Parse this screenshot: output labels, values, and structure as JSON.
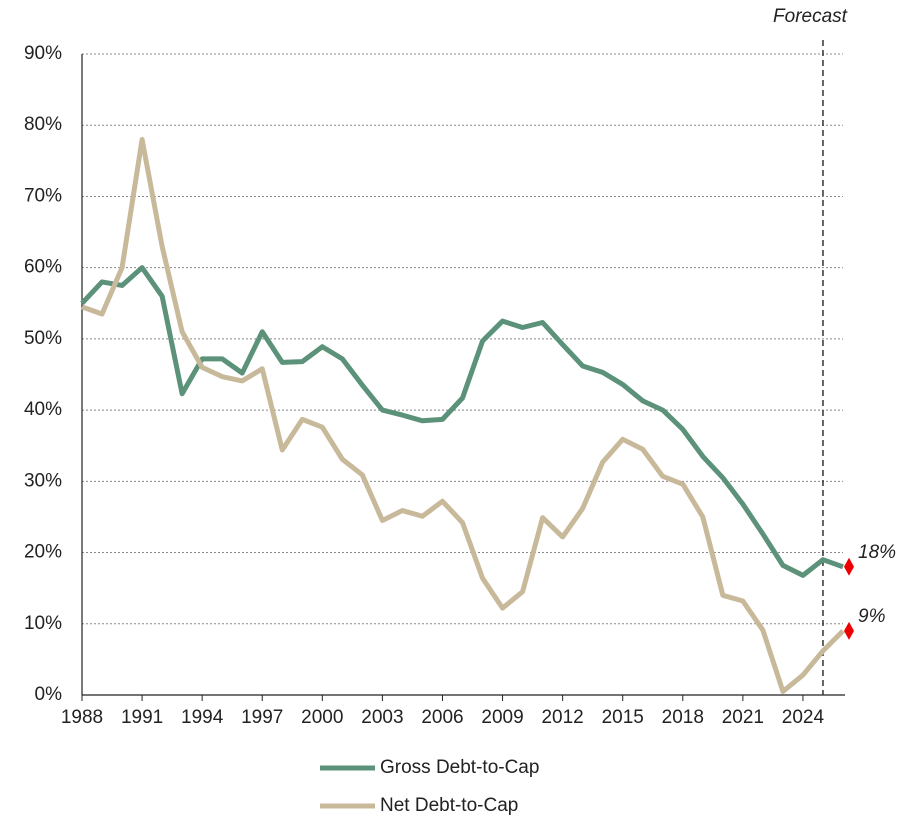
{
  "chart_data": {
    "type": "line",
    "x": [
      1988,
      1989,
      1990,
      1991,
      1992,
      1993,
      1994,
      1995,
      1996,
      1997,
      1998,
      1999,
      2000,
      2001,
      2002,
      2003,
      2004,
      2005,
      2006,
      2007,
      2008,
      2009,
      2010,
      2011,
      2012,
      2013,
      2014,
      2015,
      2016,
      2017,
      2018,
      2019,
      2020,
      2021,
      2022,
      2023,
      2024,
      2025,
      2026
    ],
    "series": [
      {
        "name": "Gross Debt-to-Cap",
        "color": "#5b9279",
        "values": [
          55,
          58,
          57.5,
          60,
          56,
          42.3,
          47.2,
          47.2,
          45.2,
          51,
          46.7,
          46.8,
          48.9,
          47.2,
          43.5,
          40,
          39.3,
          38.5,
          38.7,
          41.7,
          49.7,
          52.5,
          51.6,
          52.3,
          49.2,
          46.2,
          45.3,
          43.6,
          41.3,
          40,
          37.3,
          33.5,
          30.5,
          26.8,
          22.6,
          18.2,
          16.8,
          19,
          18
        ]
      },
      {
        "name": "Net Debt-to-Cap",
        "color": "#c8b99a",
        "values": [
          54.5,
          53.5,
          60,
          78,
          63,
          51,
          46,
          44.7,
          44.1,
          45.8,
          34.4,
          38.7,
          37.6,
          33.1,
          30.9,
          24.5,
          25.9,
          25.1,
          27.2,
          24.2,
          16.4,
          12.2,
          14.5,
          24.9,
          22.2,
          26.2,
          32.7,
          35.9,
          34.5,
          30.7,
          29.6,
          25,
          14,
          13.2,
          9.1,
          0.5,
          2.8,
          6.2,
          9
        ]
      }
    ],
    "annotations": [
      {
        "x": 2026,
        "value": 18,
        "label": "18%",
        "color": "#ee0000"
      },
      {
        "x": 2026,
        "value": 9,
        "label": "9%",
        "color": "#ee0000"
      }
    ],
    "forecast_line": {
      "x": 2025,
      "label": "Forecast"
    },
    "xlim": [
      1988,
      2026
    ],
    "xticks": [
      1988,
      1991,
      1994,
      1997,
      2000,
      2003,
      2006,
      2009,
      2012,
      2015,
      2018,
      2021,
      2024
    ],
    "ylim": [
      0,
      90
    ],
    "yticks": [
      {
        "value": 0,
        "label": "0%"
      },
      {
        "value": 10,
        "label": "10%"
      },
      {
        "value": 20,
        "label": "20%"
      },
      {
        "value": 30,
        "label": "30%"
      },
      {
        "value": 40,
        "label": "40%"
      },
      {
        "value": 50,
        "label": "50%"
      },
      {
        "value": 60,
        "label": "60%"
      },
      {
        "value": 70,
        "label": "70%"
      },
      {
        "value": 80,
        "label": "80%"
      },
      {
        "value": 90,
        "label": "90%"
      }
    ],
    "grid": true
  }
}
